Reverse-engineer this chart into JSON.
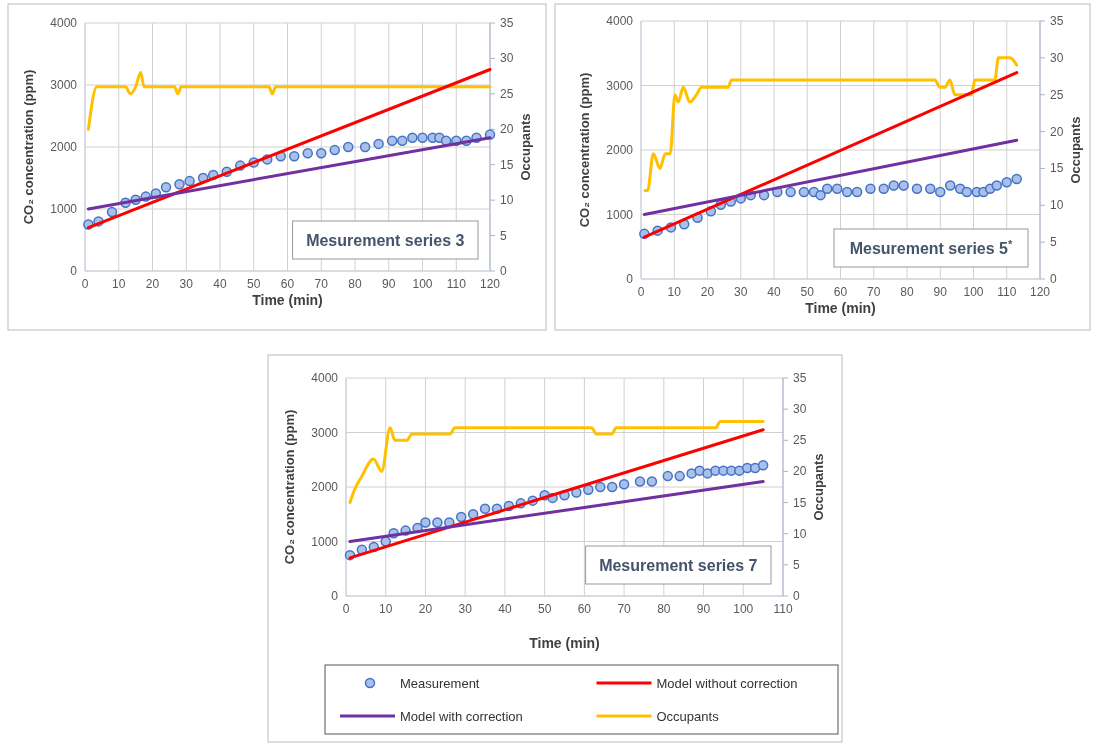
{
  "chart_data": [
    {
      "type": "line",
      "title": "Mesurement series 3",
      "xlabel": "Time (min)",
      "ylabel": "CO₂ concentration (ppm)",
      "y2label": "Occupants",
      "xlim": [
        0,
        120
      ],
      "xticks": [
        0,
        10,
        20,
        30,
        40,
        50,
        60,
        70,
        80,
        90,
        100,
        110,
        120
      ],
      "ylim": [
        0,
        4000
      ],
      "yticks": [
        0,
        1000,
        2000,
        3000,
        4000
      ],
      "y2lim": [
        0,
        35
      ],
      "y2ticks": [
        0,
        5,
        10,
        15,
        20,
        25,
        30,
        35
      ],
      "grid": true,
      "series": [
        {
          "color": "#ffc000",
          "axis": "y2",
          "x": [
            1,
            3.5,
            12,
            13.5,
            15,
            16.5,
            17.5,
            26.5,
            27.5,
            28.5,
            54.5,
            55.5,
            56.5,
            120
          ],
          "values": [
            20,
            26,
            26,
            25,
            26,
            28,
            26,
            26,
            25,
            26,
            26,
            25,
            26,
            26
          ]
        },
        {
          "type": "scatter",
          "marker": "circle",
          "color": "#4472c4",
          "x": [
            1,
            4,
            8,
            12,
            15,
            18,
            21,
            24,
            28,
            31,
            35,
            38,
            42,
            46,
            50,
            54,
            58,
            62,
            66,
            70,
            74,
            78,
            83,
            87,
            91,
            94,
            97,
            100,
            103,
            105,
            107,
            110,
            113,
            116,
            120
          ],
          "values": [
            750,
            800,
            950,
            1100,
            1150,
            1200,
            1250,
            1350,
            1400,
            1450,
            1500,
            1550,
            1600,
            1700,
            1750,
            1800,
            1850,
            1850,
            1900,
            1900,
            1950,
            2000,
            2000,
            2050,
            2100,
            2100,
            2150,
            2150,
            2150,
            2150,
            2100,
            2100,
            2100,
            2150,
            2200
          ]
        },
        {
          "color": "#ff0000",
          "x": [
            1,
            120
          ],
          "values": [
            700,
            3250
          ]
        },
        {
          "color": "#7030a0",
          "x": [
            1,
            120
          ],
          "values": [
            1000,
            2150
          ]
        }
      ]
    },
    {
      "type": "line",
      "title": "Mesurement series 5$^{*}$",
      "xlabel": "Time (min)",
      "ylabel": "CO₂ concentration (ppm)",
      "y2label": "Occupants",
      "xlim": [
        0,
        120
      ],
      "xticks": [
        0,
        10,
        20,
        30,
        40,
        50,
        60,
        70,
        80,
        90,
        100,
        110,
        120
      ],
      "ylim": [
        0,
        4000
      ],
      "yticks": [
        0,
        1000,
        2000,
        3000,
        4000
      ],
      "y2lim": [
        0,
        35
      ],
      "y2ticks": [
        0,
        5,
        10,
        15,
        20,
        25,
        30,
        35
      ],
      "grid": true,
      "series": [
        {
          "color": "#ffc000",
          "axis": "y2",
          "x": [
            1.2,
            2,
            3.7,
            5.7,
            7.3,
            8.8,
            10.2,
            11.2,
            12.7,
            14.7,
            16.7,
            18.2,
            26.2,
            27.2,
            88.4,
            89.9,
            91.4,
            92.9,
            94.4,
            99.4,
            100.4,
            106.4,
            107.5,
            111,
            113
          ],
          "values": [
            12,
            12,
            17,
            15,
            17,
            17,
            25,
            24,
            26,
            24,
            25,
            26,
            26,
            27,
            27,
            26,
            26,
            27,
            25,
            25,
            27,
            27,
            30,
            30,
            29
          ]
        },
        {
          "type": "scatter",
          "marker": "circle",
          "color": "#4472c4",
          "x": [
            1,
            5,
            9,
            13,
            17,
            21,
            24,
            27,
            30,
            33,
            37,
            41,
            45,
            49,
            52,
            54,
            56,
            59,
            62,
            65,
            69,
            73,
            76,
            79,
            83,
            87,
            90,
            93,
            96,
            98,
            101,
            103,
            105,
            107,
            110,
            113
          ],
          "values": [
            700,
            750,
            800,
            850,
            950,
            1050,
            1150,
            1200,
            1250,
            1300,
            1300,
            1350,
            1350,
            1350,
            1350,
            1300,
            1400,
            1400,
            1350,
            1350,
            1400,
            1400,
            1450,
            1450,
            1400,
            1400,
            1350,
            1450,
            1400,
            1350,
            1350,
            1350,
            1400,
            1450,
            1500,
            1550
          ]
        },
        {
          "color": "#ff0000",
          "x": [
            1,
            113
          ],
          "values": [
            650,
            3200
          ]
        },
        {
          "color": "#7030a0",
          "x": [
            1,
            113
          ],
          "values": [
            1000,
            2150
          ]
        }
      ]
    },
    {
      "type": "line",
      "title": "Mesurement series 7",
      "xlabel": "Time (min)",
      "ylabel": "CO₂ concentration (ppm)",
      "y2label": "Occupants",
      "xlim": [
        0,
        110
      ],
      "xticks": [
        0,
        10,
        20,
        30,
        40,
        50,
        60,
        70,
        80,
        90,
        100,
        110
      ],
      "ylim": [
        0,
        4000
      ],
      "yticks": [
        0,
        1000,
        2000,
        3000,
        4000
      ],
      "y2lim": [
        0,
        35
      ],
      "y2ticks": [
        0,
        5,
        10,
        15,
        20,
        25,
        30,
        35
      ],
      "grid": true,
      "legend": "bottom",
      "series": [
        {
          "name": "Occupants",
          "color": "#ffc000",
          "axis": "y2",
          "x": [
            1,
            2.1,
            3.8,
            6.9,
            9,
            11.1,
            12.3,
            15.3,
            16.6,
            26.2,
            27.4,
            61.8,
            63.1,
            66.9,
            68,
            93,
            94.2,
            105
          ],
          "values": [
            15,
            17,
            19,
            22,
            20,
            27,
            25,
            25,
            26,
            26,
            27,
            27,
            26,
            26,
            27,
            27,
            28,
            28
          ]
        },
        {
          "type": "scatter",
          "name": "Measurement",
          "marker": "circle",
          "color": "#4472c4",
          "x": [
            1,
            4,
            7,
            10,
            12,
            15,
            18,
            20,
            23,
            26,
            29,
            32,
            35,
            38,
            41,
            44,
            47,
            50,
            52,
            55,
            58,
            61,
            64,
            67,
            70,
            74,
            77,
            81,
            84,
            87,
            89,
            91,
            93,
            95,
            97,
            99,
            101,
            103,
            105
          ],
          "values": [
            750,
            850,
            900,
            1000,
            1150,
            1200,
            1250,
            1350,
            1350,
            1350,
            1450,
            1500,
            1600,
            1600,
            1650,
            1700,
            1750,
            1850,
            1800,
            1850,
            1900,
            1950,
            2000,
            2000,
            2050,
            2100,
            2100,
            2200,
            2200,
            2250,
            2300,
            2250,
            2300,
            2300,
            2300,
            2300,
            2350,
            2350,
            2400
          ]
        },
        {
          "name": "Model without correction",
          "color": "#ff0000",
          "x": [
            1,
            105
          ],
          "values": [
            700,
            3050
          ]
        },
        {
          "name": "Model with correction",
          "color": "#7030a0",
          "x": [
            1,
            105
          ],
          "values": [
            1000,
            2100
          ]
        }
      ]
    }
  ]
}
